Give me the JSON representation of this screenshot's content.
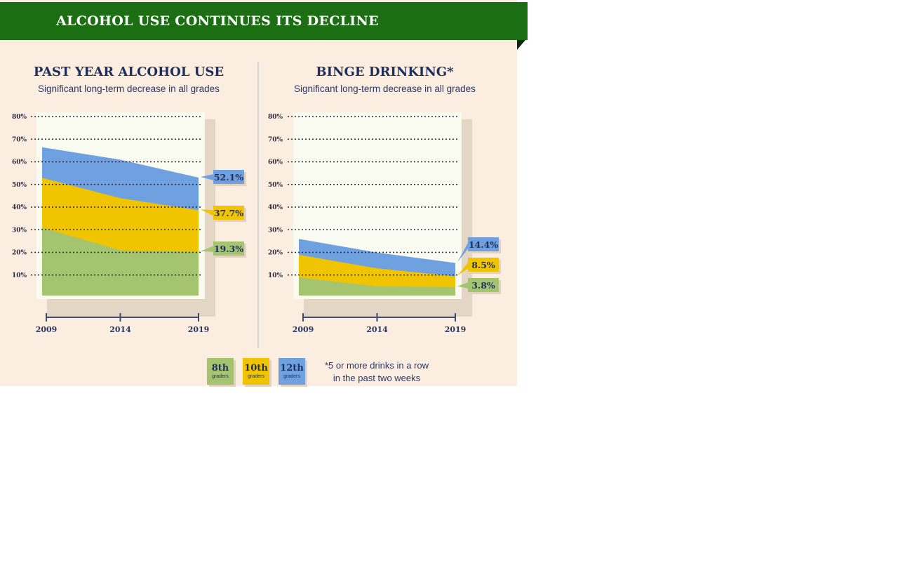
{
  "header": {
    "title": "ALCOHOL USE CONTINUES ITS DECLINE"
  },
  "colors": {
    "grade8": "#a4c46f",
    "grade10": "#f0c400",
    "grade12": "#6fa0e0",
    "banner": "#1b6f12",
    "background": "#fbeee0",
    "text": "#1f2f5c"
  },
  "chart_data": [
    {
      "type": "area",
      "title": "PAST YEAR ALCOHOL USE",
      "subtitle": "Significant long-term decrease in all grades",
      "x": [
        "2009",
        "2014",
        "2019"
      ],
      "ylim": [
        0,
        80
      ],
      "yticks": [
        "10%",
        "20%",
        "30%",
        "40%",
        "50%",
        "60%",
        "70%",
        "80%"
      ],
      "grid": true,
      "series": [
        {
          "name": "12th graders",
          "color": "#6fa0e0",
          "values": [
            65.5,
            60,
            52.1
          ],
          "end_label": "52.1%"
        },
        {
          "name": "10th graders",
          "color": "#f0c400",
          "values": [
            52,
            43,
            37.7
          ],
          "end_label": "37.7%"
        },
        {
          "name": "8th graders",
          "color": "#a4c46f",
          "values": [
            30,
            20,
            19.3
          ],
          "end_label": "19.3%"
        }
      ]
    },
    {
      "type": "area",
      "title": "BINGE DRINKING*",
      "subtitle": "Significant long-term decrease in all grades",
      "x": [
        "2009",
        "2014",
        "2019"
      ],
      "ylim": [
        0,
        80
      ],
      "yticks": [
        "10%",
        "20%",
        "30%",
        "40%",
        "50%",
        "60%",
        "70%",
        "80%"
      ],
      "grid": true,
      "series": [
        {
          "name": "12th graders",
          "color": "#6fa0e0",
          "values": [
            25,
            19,
            14.4
          ],
          "end_label": "14.4%"
        },
        {
          "name": "10th graders",
          "color": "#f0c400",
          "values": [
            18,
            12,
            8.5
          ],
          "end_label": "8.5%"
        },
        {
          "name": "8th graders",
          "color": "#a4c46f",
          "values": [
            8,
            4,
            3.8
          ],
          "end_label": "3.8%"
        }
      ]
    }
  ],
  "legend": [
    {
      "main": "8th",
      "small": "graders",
      "color": "#a4c46f"
    },
    {
      "main": "10th",
      "small": "graders",
      "color": "#f0c400"
    },
    {
      "main": "12th",
      "small": "graders",
      "color": "#6fa0e0"
    }
  ],
  "footnote": {
    "line1": "*5 or more drinks in a row",
    "line2": "in the past two weeks"
  }
}
